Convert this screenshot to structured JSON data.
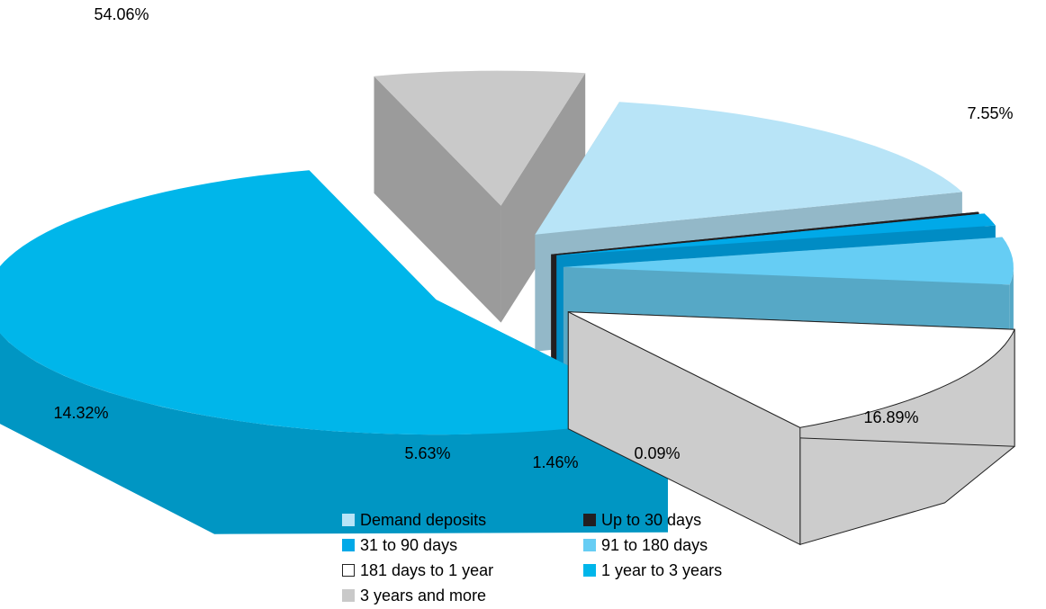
{
  "chart_data": {
    "type": "pie",
    "style": "3d-exploded",
    "slices": [
      {
        "name": "Demand deposits",
        "value": 16.89,
        "label": "16.89%",
        "color": "#b8e4f7",
        "side_color": "#93b8c8"
      },
      {
        "name": "Up to 30 days",
        "value": 0.09,
        "label": "0.09%",
        "color": "#231f20",
        "side_color": "#231f20"
      },
      {
        "name": "31 to 90 days",
        "value": 1.46,
        "label": "1.46%",
        "color": "#00a9e8",
        "side_color": "#008cc4"
      },
      {
        "name": "91 to 180 days",
        "value": 5.63,
        "label": "5.63%",
        "color": "#66cdf4",
        "side_color": "#56a8c6"
      },
      {
        "name": "181 days to 1 year",
        "value": 14.32,
        "label": "14.32%",
        "color": "#ffffff",
        "side_color": "#cccccc"
      },
      {
        "name": "1 year to 3 years",
        "value": 54.06,
        "label": "54.06%",
        "color": "#00b6ea",
        "side_color": "#0096c3"
      },
      {
        "name": "3 years and more",
        "value": 7.55,
        "label": "7.55%",
        "color": "#c9c9c9",
        "side_color": "#9b9b9b"
      }
    ],
    "legend": {
      "placement": "bottom",
      "items": [
        {
          "label": "Demand deposits",
          "color": "#b8e4f7"
        },
        {
          "label": "Up to 30 days",
          "color": "#231f20"
        },
        {
          "label": "31 to 90 days",
          "color": "#00a9e8"
        },
        {
          "label": "91 to 180 days",
          "color": "#66cdf4"
        },
        {
          "label": "181 days to 1 year",
          "color": "#ffffff"
        },
        {
          "label": "1 year to 3 years",
          "color": "#00b6ea"
        },
        {
          "label": "3 years and more",
          "color": "#c9c9c9"
        }
      ]
    }
  }
}
